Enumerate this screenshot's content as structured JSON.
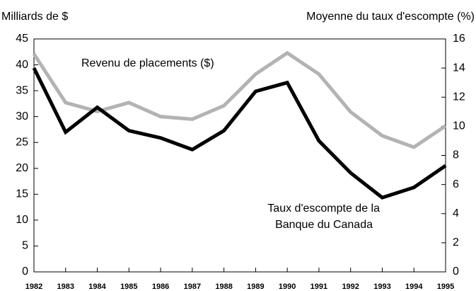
{
  "chart_data": {
    "type": "line",
    "ylabel": "Milliards de $",
    "y2label": "Moyenne du taux d'escompte (%)",
    "categories": [
      "1982",
      "1983",
      "1984",
      "1985",
      "1986",
      "1987",
      "1988",
      "1989",
      "1990",
      "1991",
      "1992",
      "1993",
      "1994",
      "1995"
    ],
    "series": [
      {
        "name": "Revenu de placements ($)",
        "color": "#b3b3b3",
        "values": [
          42.1,
          32.7,
          31.0,
          32.7,
          30.0,
          29.5,
          32.1,
          38.2,
          42.3,
          38.2,
          30.9,
          26.3,
          24.1,
          28.2
        ]
      },
      {
        "name": "Taux d'escompte de la Banque du Canada",
        "color": "#000000",
        "axis": "y2",
        "values": [
          14.0,
          9.6,
          11.3,
          9.7,
          9.2,
          8.4,
          9.7,
          12.4,
          13.0,
          9.0,
          6.8,
          5.1,
          5.8,
          7.3
        ]
      }
    ],
    "ylim": [
      0,
      45
    ],
    "yticks": [
      0,
      5,
      10,
      15,
      20,
      25,
      30,
      35,
      40,
      45
    ],
    "y2lim": [
      0,
      16
    ],
    "y2ticks": [
      0,
      2,
      4,
      6,
      8,
      10,
      12,
      14,
      16
    ],
    "annotations": [
      "Revenu de placements ($)",
      "Taux d'escompte de la",
      "Banque du Canada"
    ]
  }
}
